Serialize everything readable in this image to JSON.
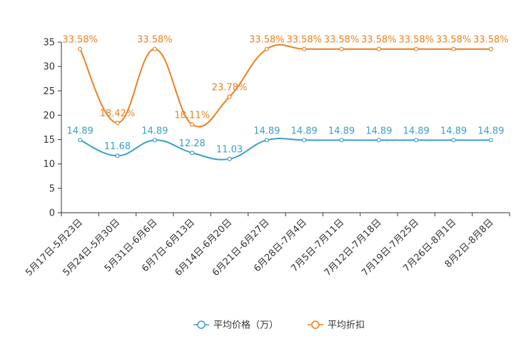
{
  "chart_data": {
    "type": "line",
    "title": "",
    "xlabel": "",
    "ylabel": "",
    "ylim": [
      0,
      35
    ],
    "yticks": [
      0,
      5,
      10,
      15,
      20,
      25,
      30,
      35
    ],
    "grid": false,
    "legend_position": "bottom-center",
    "categories": [
      "5月17日-5月23日",
      "5月24日-5月30日",
      "5月31日-6月6日",
      "6月7日-6月13日",
      "6月14日-6月20日",
      "6月21日-6月27日",
      "6月28日-7月4日",
      "7月5日-7月11日",
      "7月12日-7月18日",
      "7月19日-7月25日",
      "7月26日-8月1日",
      "8月2日-8月8日"
    ],
    "series": [
      {
        "name": "平均价格（万）",
        "color": "#3a9ecf",
        "values": [
          14.89,
          11.68,
          14.89,
          12.28,
          11.03,
          14.89,
          14.89,
          14.89,
          14.89,
          14.89,
          14.89,
          14.89
        ],
        "labels": [
          "14.89",
          "11.68",
          "14.89",
          "12.28",
          "11.03",
          "14.89",
          "14.89",
          "14.89",
          "14.89",
          "14.89",
          "14.89",
          "14.89"
        ]
      },
      {
        "name": "平均折扣",
        "color": "#f07f1d",
        "values": [
          33.58,
          18.42,
          33.58,
          18.11,
          23.78,
          33.58,
          33.58,
          33.58,
          33.58,
          33.58,
          33.58,
          33.58
        ],
        "labels": [
          "33.58%",
          "18.42%",
          "33.58%",
          "18.11%",
          "23.78%",
          "33.58%",
          "33.58%",
          "33.58%",
          "33.58%",
          "33.58%",
          "33.58%",
          "33.58%"
        ]
      }
    ]
  }
}
